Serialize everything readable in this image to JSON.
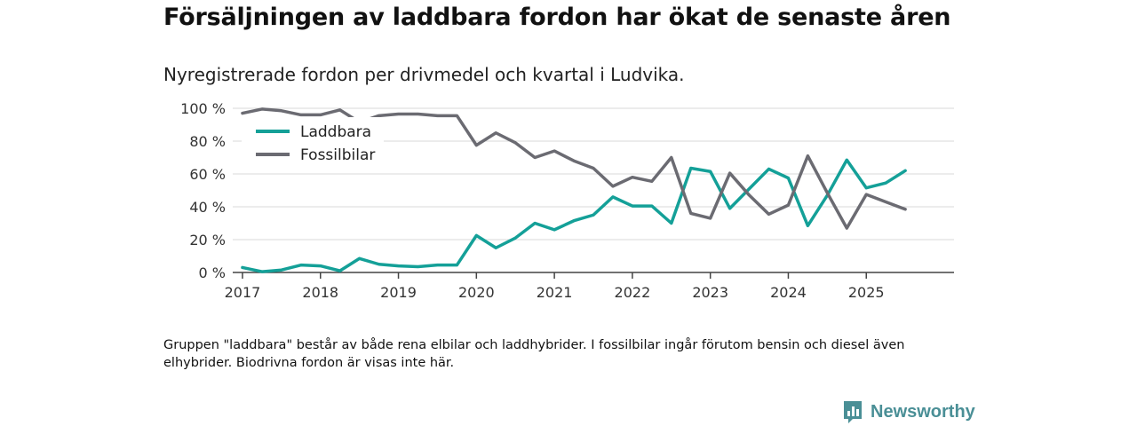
{
  "title": "Försäljningen av laddbara fordon har ökat de senaste åren",
  "subtitle": "Nyregistrerade fordon per drivmedel och kvartal i Ludvika.",
  "note": "Gruppen \"laddbara\" består av både rena elbilar och laddhybrider. I fossilbilar ingår förutom bensin och diesel även elhybrider. Biodrivna fordon är visas inte här.",
  "brand": {
    "name": "Newsworthy",
    "icon": "newsworthy-logo-icon",
    "color": "#4a8f96"
  },
  "chart_data": {
    "type": "line",
    "title": "Nyregistrerade fordon per drivmedel och kvartal i Ludvika.",
    "xlabel": "",
    "ylabel": "",
    "xlim": [
      2016.875,
      2026.125
    ],
    "ylim": [
      0,
      100
    ],
    "y_ticks": [
      0,
      20,
      40,
      60,
      80,
      100
    ],
    "y_tick_labels": [
      "0 %",
      "20 %",
      "40 %",
      "60 %",
      "80 %",
      "100 %"
    ],
    "x_ticks": [
      2017,
      2018,
      2019,
      2020,
      2021,
      2022,
      2023,
      2024,
      2025
    ],
    "x_tick_labels": [
      "2017",
      "2018",
      "2019",
      "2020",
      "2021",
      "2022",
      "2023",
      "2024",
      "2025"
    ],
    "grid": true,
    "legend_position": "top-left",
    "x": [
      2017,
      2017.25,
      2017.5,
      2017.75,
      2018,
      2018.25,
      2018.5,
      2018.75,
      2019,
      2019.25,
      2019.5,
      2019.75,
      2020,
      2020.25,
      2020.5,
      2020.75,
      2021,
      2021.25,
      2021.5,
      2021.75,
      2022,
      2022.25,
      2022.5,
      2022.75,
      2023,
      2023.25,
      2023.5,
      2023.75,
      2024,
      2024.25,
      2024.5,
      2024.75,
      2025,
      2025.25,
      2025.5
    ],
    "series": [
      {
        "name": "Laddbara",
        "color": "#14a098",
        "values": [
          3,
          0.5,
          1.5,
          4.5,
          4,
          1,
          8.5,
          5,
          4,
          3.5,
          4.5,
          4.5,
          22.5,
          15,
          21,
          30,
          26,
          31.5,
          35,
          46,
          40.5,
          40.5,
          30,
          63.5,
          61.5,
          39,
          51,
          63,
          57.5,
          28.5,
          47,
          68.5,
          51.5,
          54.5,
          62
        ]
      },
      {
        "name": "Fossilbilar",
        "color": "#6b6b72",
        "values": [
          97,
          99.5,
          98.5,
          96,
          96,
          99,
          91.5,
          95.5,
          96.5,
          96.5,
          95.5,
          95.5,
          77.5,
          85,
          79,
          70,
          74,
          68,
          63.5,
          52.5,
          58,
          55.5,
          70,
          36,
          33,
          60.5,
          47,
          35.5,
          41,
          71,
          48.5,
          27,
          47.5,
          43,
          38.5
        ]
      }
    ]
  }
}
